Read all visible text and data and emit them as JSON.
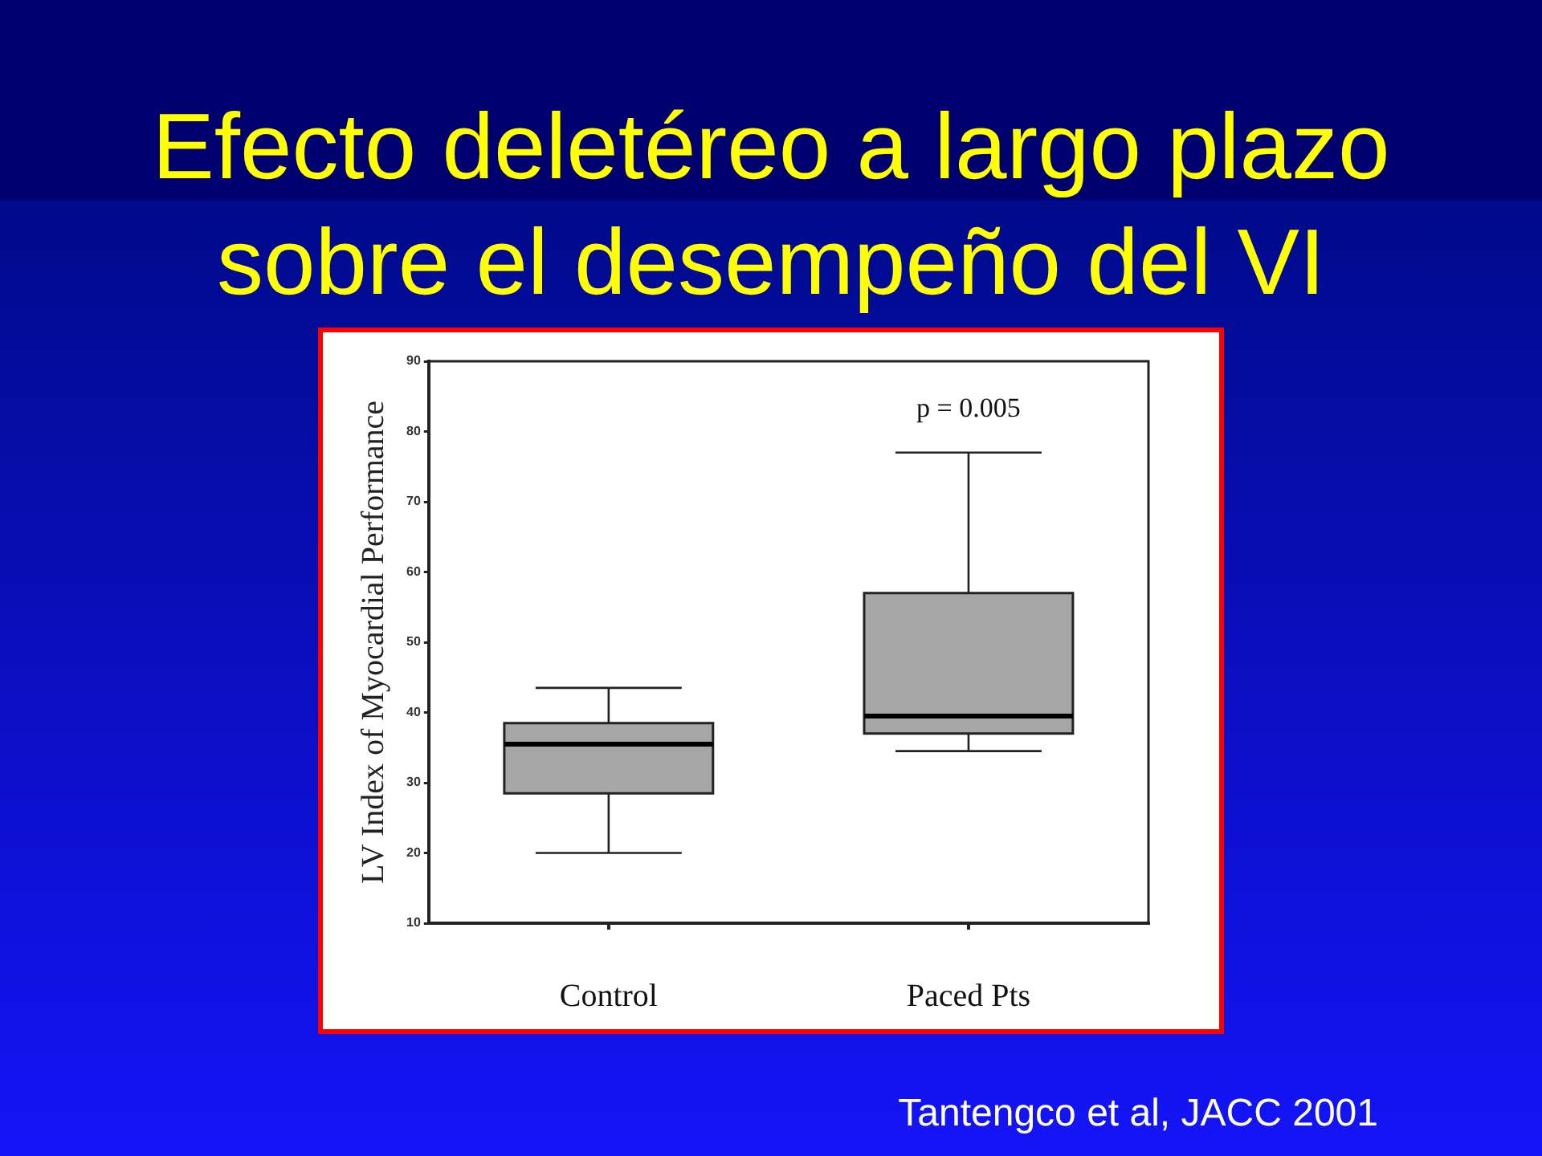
{
  "chart_data": {
    "type": "box",
    "title": "Efecto deletéreo a largo plazo sobre el desempeño del VI",
    "ylabel": "LV Index of Myocardial Performance",
    "categories": [
      "Control",
      "Paced Pts"
    ],
    "boxes": [
      {
        "low": 20,
        "q1": 28.5,
        "median": 35.5,
        "q3": 38.5,
        "high": 43.5
      },
      {
        "low": 34.5,
        "q1": 37,
        "median": 39.5,
        "q3": 57,
        "high": 77
      }
    ],
    "color": "#a6a6a6",
    "ylim": [
      10,
      90
    ],
    "yticks": [
      10,
      20,
      30,
      40,
      50,
      60,
      70,
      80,
      90
    ],
    "annotations": [
      "p = 0.005",
      "Tantengco et al, JACC 2001"
    ]
  }
}
